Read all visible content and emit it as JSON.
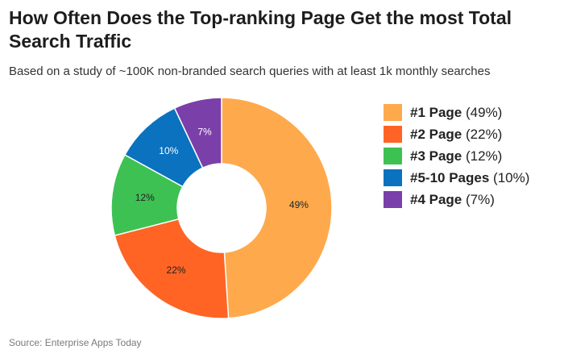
{
  "chart_data": {
    "type": "pie",
    "title": "How Often Does the Top-ranking Page Get the most Total Search Traffic",
    "subtitle": "Based on a study of ~100K non-branded search queries with at least 1k monthly searches",
    "donut": true,
    "slices": [
      {
        "name": "#1 Page",
        "value": 49,
        "label": "49%",
        "legend_value": "(49%)",
        "color": "#FFA94D",
        "label_color": "#222222"
      },
      {
        "name": "#2 Page",
        "value": 22,
        "label": "22%",
        "legend_value": "(22%)",
        "color": "#FF6424",
        "label_color": "#222222"
      },
      {
        "name": "#3 Page",
        "value": 12,
        "label": "12%",
        "legend_value": "(12%)",
        "color": "#3EC153",
        "label_color": "#222222"
      },
      {
        "name": "#5-10 Pages",
        "value": 10,
        "label": "10%",
        "legend_value": "(10%)",
        "color": "#0A72BE",
        "label_color": "#ffffff"
      },
      {
        "name": "#4 Page",
        "value": 7,
        "label": "7%",
        "legend_value": "(7%)",
        "color": "#7B3FA9",
        "label_color": "#ffffff"
      }
    ],
    "legend_position": "right",
    "source": "Source: Enterprise Apps Today"
  }
}
